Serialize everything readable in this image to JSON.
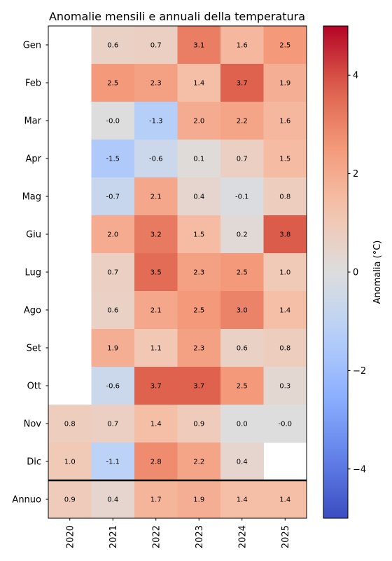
{
  "chart_data": [
    {
      "type": "heatmap",
      "title": "Anomalie mensili e annuali della temperatura",
      "x_categories": [
        "2020",
        "2021",
        "2022",
        "2023",
        "2024",
        "2025"
      ],
      "y_categories": [
        "Gen",
        "Feb",
        "Mar",
        "Apr",
        "Mag",
        "Giu",
        "Lug",
        "Ago",
        "Set",
        "Ott",
        "Nov",
        "Dic",
        "Annuo"
      ],
      "values": [
        [
          null,
          0.6,
          0.7,
          3.1,
          1.6,
          2.5
        ],
        [
          null,
          2.5,
          2.3,
          1.4,
          3.7,
          1.9
        ],
        [
          null,
          -0.0,
          -1.3,
          2.0,
          2.2,
          1.6
        ],
        [
          null,
          -1.5,
          -0.6,
          0.1,
          0.7,
          1.5
        ],
        [
          null,
          -0.7,
          2.1,
          0.4,
          -0.1,
          0.8
        ],
        [
          null,
          2.0,
          3.2,
          1.5,
          0.2,
          3.8
        ],
        [
          null,
          0.7,
          3.5,
          2.3,
          2.5,
          1.0
        ],
        [
          null,
          0.6,
          2.1,
          2.5,
          3.0,
          1.4
        ],
        [
          null,
          1.9,
          1.1,
          2.3,
          0.6,
          0.8
        ],
        [
          null,
          -0.6,
          3.7,
          3.7,
          2.5,
          0.3
        ],
        [
          0.8,
          0.7,
          1.4,
          0.9,
          0.0,
          -0.0
        ],
        [
          1.0,
          -1.1,
          2.8,
          2.2,
          0.4,
          null
        ],
        [
          0.9,
          0.4,
          1.7,
          1.9,
          1.4,
          1.4
        ]
      ],
      "labels": [
        [
          "",
          "0.6",
          "0.7",
          "3.1",
          "1.6",
          "2.5"
        ],
        [
          "",
          "2.5",
          "2.3",
          "1.4",
          "3.7",
          "1.9"
        ],
        [
          "",
          "-0.0",
          "-1.3",
          "2.0",
          "2.2",
          "1.6"
        ],
        [
          "",
          "-1.5",
          "-0.6",
          "0.1",
          "0.7",
          "1.5"
        ],
        [
          "",
          "-0.7",
          "2.1",
          "0.4",
          "-0.1",
          "0.8"
        ],
        [
          "",
          "2.0",
          "3.2",
          "1.5",
          "0.2",
          "3.8"
        ],
        [
          "",
          "0.7",
          "3.5",
          "2.3",
          "2.5",
          "1.0"
        ],
        [
          "",
          "0.6",
          "2.1",
          "2.5",
          "3.0",
          "1.4"
        ],
        [
          "",
          "1.9",
          "1.1",
          "2.3",
          "0.6",
          "0.8"
        ],
        [
          "",
          "-0.6",
          "3.7",
          "3.7",
          "2.5",
          "0.3"
        ],
        [
          "0.8",
          "0.7",
          "1.4",
          "0.9",
          "0.0",
          "-0.0"
        ],
        [
          "1.0",
          "-1.1",
          "2.8",
          "2.2",
          "0.4",
          ""
        ],
        [
          "0.9",
          "0.4",
          "1.7",
          "1.9",
          "1.4",
          "1.4"
        ]
      ],
      "colormap": "coolwarm",
      "vmin": -5,
      "vmax": 5,
      "colorbar": {
        "label": "Anomalia (°C)",
        "ticks": [
          -4,
          -2,
          0,
          2,
          4
        ],
        "tick_labels": [
          "−4",
          "−2",
          "0",
          "2",
          "4"
        ]
      },
      "separator_before": "Annuo",
      "xtick_rotation": "vertical"
    }
  ]
}
